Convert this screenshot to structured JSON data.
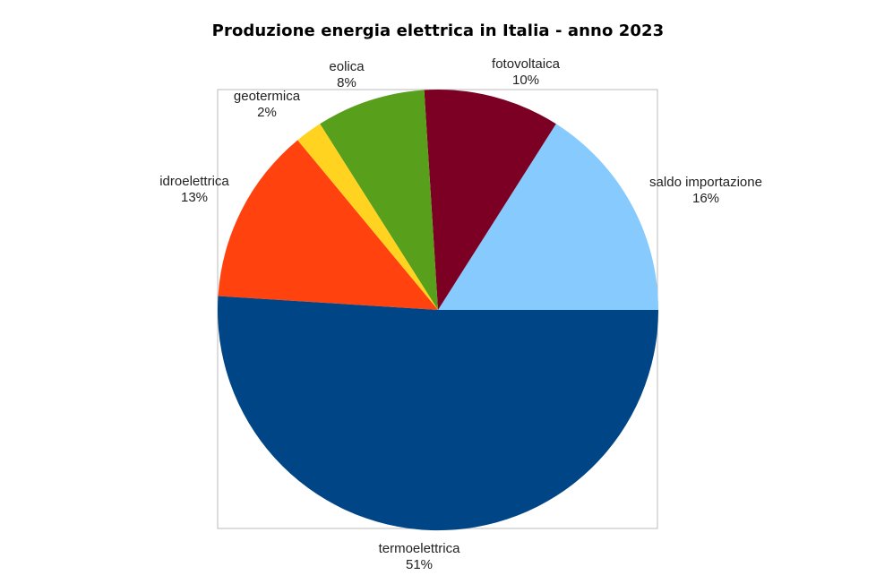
{
  "chart_data": {
    "type": "pie",
    "title": "Produzione energia elettrica in Italia - anno 2023",
    "slices": [
      {
        "label": "saldo importazione",
        "value": 16,
        "display": "16%",
        "color": "#87CAFD"
      },
      {
        "label": "fotovoltaica",
        "value": 10,
        "display": "10%",
        "color": "#7C0023"
      },
      {
        "label": "eolica",
        "value": 8,
        "display": "8%",
        "color": "#589F1C"
      },
      {
        "label": "geotermica",
        "value": 2,
        "display": "2%",
        "color": "#FFD320"
      },
      {
        "label": "idroelettrica",
        "value": 13,
        "display": "13%",
        "color": "#FF420E"
      },
      {
        "label": "termoelettrica",
        "value": 51,
        "display": "51%",
        "color": "#004586"
      }
    ],
    "start": "3 o'clock",
    "direction": "counterclockwise",
    "legend": "none",
    "plot_border_color": "#BBBBBB"
  }
}
